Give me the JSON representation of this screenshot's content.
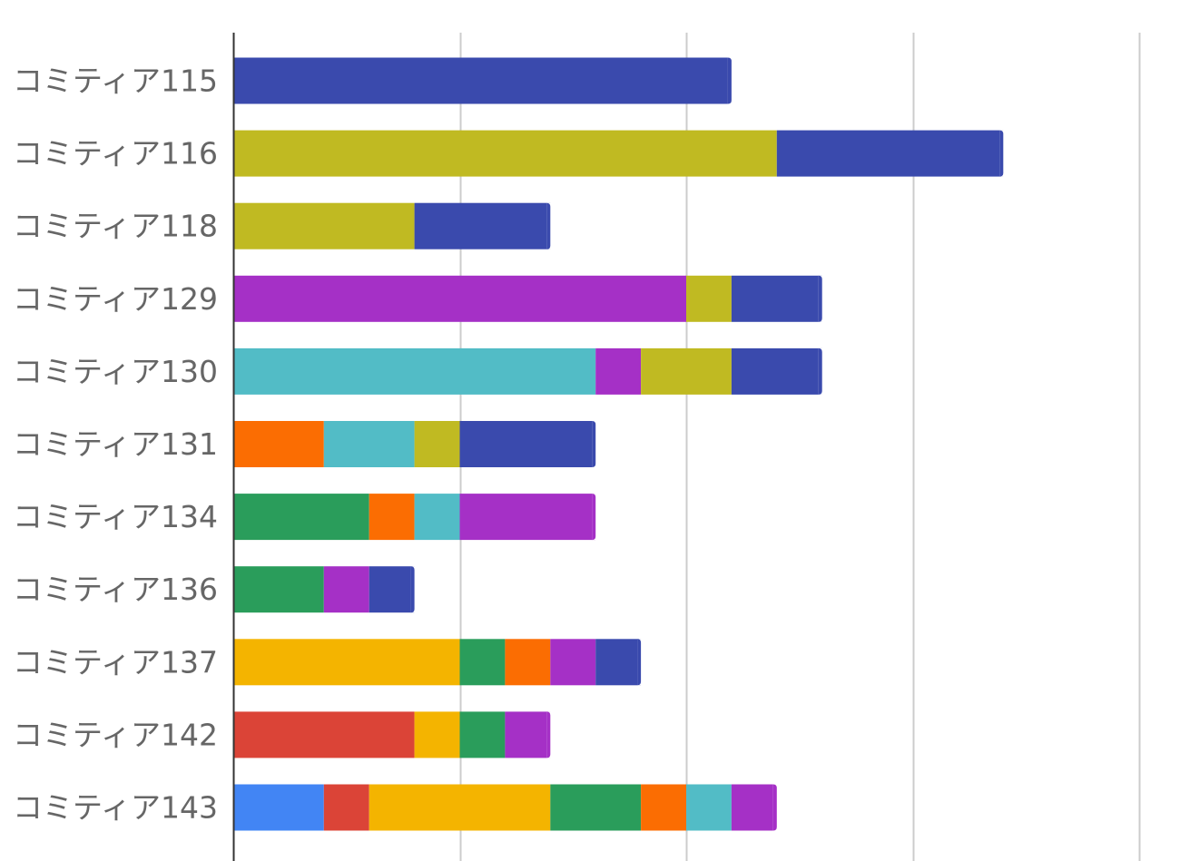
{
  "chart_data": {
    "type": "bar",
    "orientation": "horizontal",
    "stacked": true,
    "title": "",
    "xlabel": "",
    "ylabel": "",
    "xlim": [
      0,
      20
    ],
    "x_gridlines": [
      0,
      5,
      10,
      15,
      20
    ],
    "grid": true,
    "legend": "none",
    "categories": [
      "コミティア115",
      "コミティア116",
      "コミティア118",
      "コミティア129",
      "コミティア130",
      "コミティア131",
      "コミティア134",
      "コミティア136",
      "コミティア137",
      "コミティア142",
      "コミティア143"
    ],
    "series": [
      {
        "color": "#4285f4",
        "values": [
          0,
          0,
          0,
          0,
          0,
          0,
          0,
          0,
          0,
          0,
          2
        ]
      },
      {
        "color": "#db4437",
        "values": [
          0,
          0,
          0,
          0,
          0,
          0,
          0,
          0,
          0,
          4,
          1
        ]
      },
      {
        "color": "#f4b400",
        "values": [
          0,
          0,
          0,
          0,
          0,
          0,
          0,
          0,
          5,
          1,
          4
        ]
      },
      {
        "color": "#2a9d5b",
        "values": [
          0,
          0,
          0,
          0,
          0,
          0,
          3,
          2,
          1,
          1,
          2
        ]
      },
      {
        "color": "#fb6d02",
        "values": [
          0,
          0,
          0,
          0,
          0,
          2,
          1,
          0,
          1,
          0,
          1
        ]
      },
      {
        "color": "#52bcc6",
        "values": [
          0,
          0,
          0,
          0,
          8,
          2,
          1,
          0,
          0,
          0,
          1
        ]
      },
      {
        "color": "#a530c6",
        "values": [
          0,
          0,
          0,
          10,
          1,
          0,
          3,
          1,
          1,
          1,
          1
        ]
      },
      {
        "color": "#c0ba22",
        "values": [
          0,
          12,
          4,
          1,
          2,
          1,
          0,
          0,
          0,
          0,
          0
        ]
      },
      {
        "color": "#3a4aad",
        "values": [
          11,
          5,
          3,
          2,
          2,
          3,
          0,
          1,
          1,
          0,
          0
        ]
      }
    ]
  }
}
